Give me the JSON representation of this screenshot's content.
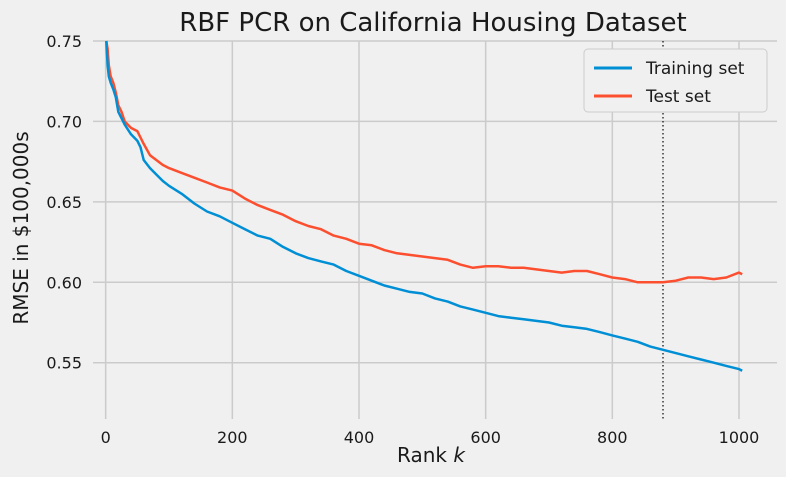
{
  "chart_data": {
    "type": "line",
    "title": "RBF PCR on California Housing Dataset",
    "xlabel": "Rank",
    "xlabel_var": "k",
    "ylabel": "RMSE in $100,000s",
    "xlim": [
      -20,
      1060
    ],
    "ylim": [
      0.515,
      0.75
    ],
    "xticks": [
      0,
      200,
      400,
      600,
      800,
      1000
    ],
    "yticks": [
      0.55,
      0.6,
      0.65,
      0.7,
      0.75
    ],
    "ytick_labels": [
      "0.55",
      "0.60",
      "0.65",
      "0.70",
      "0.75"
    ],
    "grid": true,
    "legend_position": "top-right",
    "vline": {
      "x": 880,
      "style": "dotted"
    },
    "series": [
      {
        "name": "Training set",
        "color": "#008fd5",
        "x": [
          1,
          3,
          5,
          8,
          12,
          16,
          20,
          25,
          30,
          40,
          50,
          55,
          60,
          70,
          80,
          90,
          100,
          120,
          140,
          160,
          180,
          200,
          220,
          240,
          260,
          280,
          300,
          320,
          340,
          360,
          380,
          400,
          420,
          440,
          460,
          480,
          500,
          520,
          540,
          560,
          580,
          600,
          620,
          640,
          660,
          680,
          700,
          720,
          740,
          760,
          780,
          800,
          820,
          840,
          860,
          880,
          900,
          920,
          940,
          960,
          980,
          1000,
          1005
        ],
        "y": [
          0.75,
          0.735,
          0.728,
          0.724,
          0.72,
          0.715,
          0.706,
          0.702,
          0.698,
          0.692,
          0.688,
          0.684,
          0.676,
          0.671,
          0.667,
          0.663,
          0.66,
          0.655,
          0.649,
          0.644,
          0.641,
          0.637,
          0.633,
          0.629,
          0.627,
          0.622,
          0.618,
          0.615,
          0.613,
          0.611,
          0.607,
          0.604,
          0.601,
          0.598,
          0.596,
          0.594,
          0.593,
          0.59,
          0.588,
          0.585,
          0.583,
          0.581,
          0.579,
          0.578,
          0.577,
          0.576,
          0.575,
          0.573,
          0.572,
          0.571,
          0.569,
          0.567,
          0.565,
          0.563,
          0.56,
          0.558,
          0.556,
          0.554,
          0.552,
          0.55,
          0.548,
          0.546,
          0.545
        ]
      },
      {
        "name": "Test set",
        "color": "#fc4f30",
        "x": [
          1,
          3,
          5,
          8,
          12,
          16,
          20,
          25,
          30,
          40,
          50,
          55,
          60,
          70,
          80,
          90,
          100,
          120,
          140,
          160,
          180,
          200,
          220,
          240,
          260,
          280,
          300,
          320,
          340,
          360,
          380,
          400,
          420,
          440,
          460,
          480,
          500,
          520,
          540,
          560,
          580,
          600,
          620,
          640,
          660,
          680,
          700,
          720,
          740,
          760,
          780,
          800,
          820,
          840,
          860,
          880,
          900,
          920,
          940,
          960,
          980,
          1000,
          1005
        ],
        "y": [
          0.75,
          0.745,
          0.735,
          0.728,
          0.724,
          0.718,
          0.71,
          0.706,
          0.7,
          0.696,
          0.694,
          0.69,
          0.686,
          0.679,
          0.676,
          0.673,
          0.671,
          0.668,
          0.665,
          0.662,
          0.659,
          0.657,
          0.652,
          0.648,
          0.645,
          0.642,
          0.638,
          0.635,
          0.633,
          0.629,
          0.627,
          0.624,
          0.623,
          0.62,
          0.618,
          0.617,
          0.616,
          0.615,
          0.614,
          0.611,
          0.609,
          0.61,
          0.61,
          0.609,
          0.609,
          0.608,
          0.607,
          0.606,
          0.607,
          0.607,
          0.605,
          0.603,
          0.602,
          0.6,
          0.6,
          0.6,
          0.601,
          0.603,
          0.603,
          0.602,
          0.603,
          0.606,
          0.605
        ]
      }
    ]
  }
}
